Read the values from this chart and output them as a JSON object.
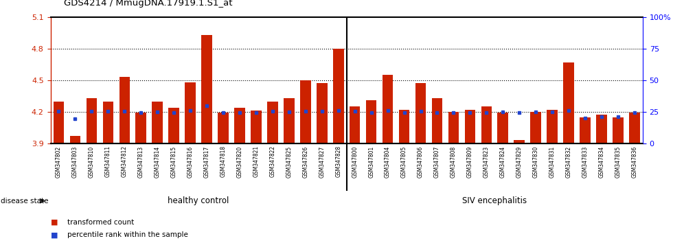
{
  "title": "GDS4214 / MmugDNA.17919.1.S1_at",
  "samples": [
    "GSM347802",
    "GSM347803",
    "GSM347810",
    "GSM347811",
    "GSM347812",
    "GSM347813",
    "GSM347814",
    "GSM347815",
    "GSM347816",
    "GSM347817",
    "GSM347818",
    "GSM347820",
    "GSM347821",
    "GSM347822",
    "GSM347825",
    "GSM347826",
    "GSM347827",
    "GSM347828",
    "GSM347800",
    "GSM347801",
    "GSM347804",
    "GSM347805",
    "GSM347806",
    "GSM347807",
    "GSM347808",
    "GSM347809",
    "GSM347823",
    "GSM347824",
    "GSM347829",
    "GSM347830",
    "GSM347831",
    "GSM347832",
    "GSM347833",
    "GSM347834",
    "GSM347835",
    "GSM347836"
  ],
  "bar_values": [
    4.3,
    3.97,
    4.33,
    4.3,
    4.53,
    4.19,
    4.3,
    4.24,
    4.48,
    4.93,
    4.19,
    4.24,
    4.21,
    4.3,
    4.33,
    4.5,
    4.47,
    4.8,
    4.25,
    4.31,
    4.55,
    4.22,
    4.47,
    4.33,
    4.2,
    4.22,
    4.25,
    4.19,
    3.93,
    4.2,
    4.22,
    4.67,
    4.15,
    4.17,
    4.15,
    4.19
  ],
  "percentile_values": [
    4.205,
    4.135,
    4.205,
    4.205,
    4.207,
    4.193,
    4.2,
    4.193,
    4.21,
    4.26,
    4.193,
    4.195,
    4.193,
    4.203,
    4.2,
    4.208,
    4.208,
    4.21,
    4.203,
    4.193,
    4.21,
    4.193,
    4.203,
    4.195,
    4.193,
    4.193,
    4.193,
    4.2,
    4.193,
    4.2,
    4.2,
    4.21,
    4.138,
    4.152,
    4.152,
    4.193
  ],
  "healthy_count": 18,
  "disease_count": 18,
  "ylim_left": [
    3.9,
    5.1
  ],
  "yticks_left": [
    3.9,
    4.2,
    4.5,
    4.8,
    5.1
  ],
  "yticks_right": [
    0,
    25,
    50,
    75,
    100
  ],
  "ytick_labels_right": [
    "0",
    "25",
    "50",
    "75",
    "100%"
  ],
  "bar_color": "#cc2200",
  "percentile_color": "#2244cc",
  "healthy_bg": "#cceecc",
  "disease_bg": "#44bb44",
  "plot_bg": "#ffffff",
  "xtick_bg": "#cccccc",
  "legend_bar": "transformed count",
  "legend_pct": "percentile rank within the sample",
  "label_healthy": "healthy control",
  "label_disease": "SIV encephalitis",
  "disease_state_label": "disease state"
}
